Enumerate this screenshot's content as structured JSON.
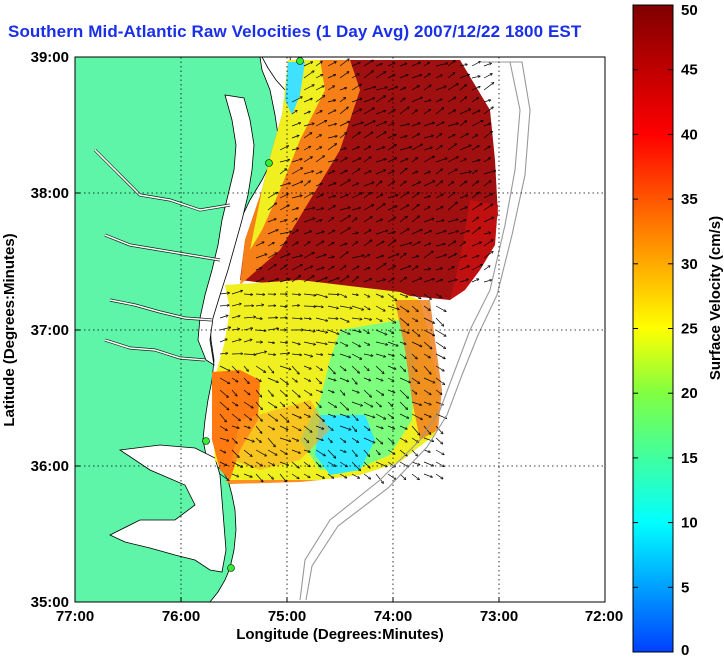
{
  "title": "Southern Mid-Atlantic Raw Velocities (1 Day Avg) 2007/12/22 1800 EST",
  "axes": {
    "xlabel": "Longitude (Degrees:Minutes)",
    "ylabel": "Latitude (Degrees:Minutes)",
    "x_ticks": [
      "77:00",
      "76:00",
      "75:00",
      "74:00",
      "73:00",
      "72:00"
    ],
    "y_ticks": [
      "39:00",
      "38:00",
      "37:00",
      "36:00",
      "35:00"
    ],
    "xlim": [
      -77,
      -72
    ],
    "ylim": [
      35,
      39
    ],
    "grid": true
  },
  "colorbar": {
    "label": "Surface Velocity (cm/s)",
    "ticks": [
      "0",
      "5",
      "10",
      "15",
      "20",
      "25",
      "30",
      "35",
      "40",
      "45",
      "50"
    ],
    "range": [
      0,
      50
    ],
    "colormap": "jet"
  },
  "colors": {
    "land": "#5ff5a8",
    "water": "#ffffff",
    "coast": "#000000",
    "bathymetry": "#999999",
    "title": "#1a2fe8",
    "site_marker": "#33ee33"
  },
  "sites": [
    "site-1",
    "site-2",
    "site-3",
    "site-4"
  ]
}
